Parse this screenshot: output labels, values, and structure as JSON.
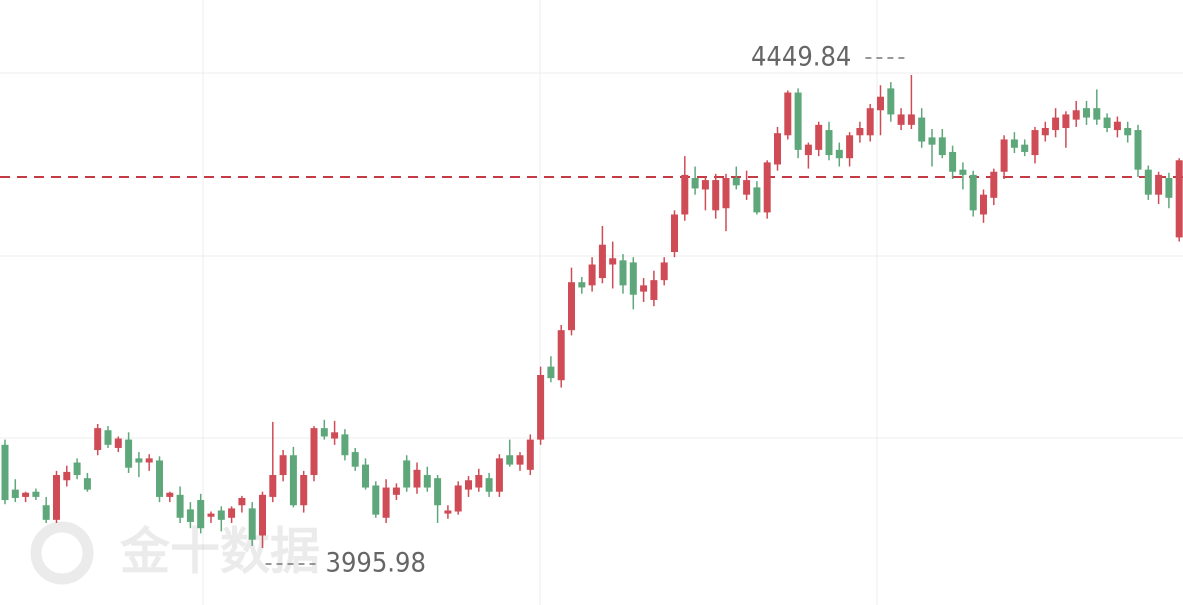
{
  "chart_data": {
    "type": "candlestick",
    "watermark": "金十数据",
    "max_label": 4449.84,
    "min_label": 3995.98,
    "price_line": 4352,
    "up_color": "#cf4b55",
    "down_color": "#5ea77a",
    "line_color": "#c23b45",
    "ylim": [
      3941.3,
      4521.8
    ],
    "candles": [
      [
        4095,
        4100,
        4038,
        4042
      ],
      [
        4052,
        4062,
        4040,
        4044
      ],
      [
        4045,
        4050,
        4040,
        4049
      ],
      [
        4050,
        4053,
        4042,
        4045
      ],
      [
        4037,
        4045,
        4020,
        4023
      ],
      [
        4023,
        4070,
        4020,
        4066
      ],
      [
        4061,
        4075,
        4055,
        4069
      ],
      [
        4078,
        4082,
        4062,
        4066
      ],
      [
        4063,
        4068,
        4050,
        4052
      ],
      [
        4090,
        4115,
        4085,
        4111
      ],
      [
        4109,
        4113,
        4092,
        4095
      ],
      [
        4092,
        4103,
        4088,
        4101
      ],
      [
        4100,
        4107,
        4068,
        4073
      ],
      [
        4082,
        4088,
        4064,
        4078
      ],
      [
        4078,
        4086,
        4070,
        4082
      ],
      [
        4080,
        4084,
        4040,
        4045
      ],
      [
        4045,
        4050,
        4040,
        4049
      ],
      [
        4047,
        4055,
        4020,
        4025
      ],
      [
        4033,
        4040,
        4015,
        4021
      ],
      [
        4042,
        4048,
        4010,
        4015
      ],
      [
        4026,
        4031,
        4020,
        4029
      ],
      [
        4032,
        4036,
        4012,
        4023
      ],
      [
        4025,
        4036,
        4020,
        4034
      ],
      [
        4037,
        4046,
        4030,
        4044
      ],
      [
        4034,
        4040,
        3998,
        4004
      ],
      [
        4008,
        4050,
        3995.98,
        4047
      ],
      [
        4045,
        4117,
        4040,
        4066
      ],
      [
        4066,
        4090,
        4060,
        4085
      ],
      [
        4085,
        4093,
        4035,
        4037
      ],
      [
        4037,
        4070,
        4030,
        4066
      ],
      [
        4066,
        4113,
        4060,
        4111
      ],
      [
        4111,
        4119,
        4100,
        4103
      ],
      [
        4101,
        4118,
        4095,
        4107
      ],
      [
        4105,
        4110,
        4080,
        4085
      ],
      [
        4088,
        4092,
        4070,
        4074
      ],
      [
        4076,
        4082,
        4052,
        4054
      ],
      [
        4056,
        4060,
        4025,
        4028
      ],
      [
        4025,
        4062,
        4020,
        4054
      ],
      [
        4047,
        4058,
        4042,
        4054
      ],
      [
        4080,
        4085,
        4050,
        4054
      ],
      [
        4054,
        4078,
        4048,
        4071
      ],
      [
        4066,
        4074,
        4050,
        4054
      ],
      [
        4063,
        4066,
        4020,
        4037
      ],
      [
        4029,
        4037,
        4024,
        4032
      ],
      [
        4031,
        4060,
        4028,
        4056
      ],
      [
        4052,
        4065,
        4045,
        4061
      ],
      [
        4054,
        4072,
        4050,
        4066
      ],
      [
        4063,
        4068,
        4045,
        4050
      ],
      [
        4050,
        4086,
        4045,
        4082
      ],
      [
        4085,
        4100,
        4074,
        4076
      ],
      [
        4076,
        4088,
        4070,
        4085
      ],
      [
        4071,
        4105,
        4066,
        4100
      ],
      [
        4100,
        4170,
        4095,
        4162
      ],
      [
        4170,
        4180,
        4155,
        4159
      ],
      [
        4157,
        4210,
        4150,
        4205
      ],
      [
        4205,
        4265,
        4200,
        4251
      ],
      [
        4251,
        4256,
        4240,
        4246
      ],
      [
        4248,
        4275,
        4242,
        4268
      ],
      [
        4255,
        4305,
        4250,
        4287
      ],
      [
        4268,
        4290,
        4245,
        4274
      ],
      [
        4272,
        4278,
        4240,
        4248
      ],
      [
        4270,
        4275,
        4225,
        4239
      ],
      [
        4242,
        4255,
        4232,
        4248
      ],
      [
        4234,
        4262,
        4228,
        4253
      ],
      [
        4253,
        4275,
        4248,
        4270
      ],
      [
        4280,
        4320,
        4275,
        4316
      ],
      [
        4316,
        4372,
        4310,
        4354
      ],
      [
        4351,
        4362,
        4335,
        4341
      ],
      [
        4340,
        4352,
        4320,
        4349
      ],
      [
        4320,
        4355,
        4312,
        4349
      ],
      [
        4322,
        4355,
        4300,
        4351
      ],
      [
        4351,
        4362,
        4340,
        4344
      ],
      [
        4335,
        4358,
        4330,
        4349
      ],
      [
        4342,
        4348,
        4316,
        4318
      ],
      [
        4318,
        4368,
        4312,
        4366
      ],
      [
        4364,
        4400,
        4358,
        4394
      ],
      [
        4392,
        4435,
        4388,
        4433
      ],
      [
        4433,
        4437,
        4370,
        4378
      ],
      [
        4373,
        4385,
        4360,
        4383
      ],
      [
        4378,
        4405,
        4372,
        4402
      ],
      [
        4397,
        4405,
        4368,
        4373
      ],
      [
        4378,
        4385,
        4362,
        4370
      ],
      [
        4370,
        4395,
        4362,
        4392
      ],
      [
        4392,
        4405,
        4385,
        4399
      ],
      [
        4392,
        4422,
        4386,
        4418
      ],
      [
        4416,
        4440,
        4392,
        4429
      ],
      [
        4437,
        4443,
        4405,
        4412
      ],
      [
        4402,
        4418,
        4397,
        4412
      ],
      [
        4402,
        4449.84,
        4398,
        4412
      ],
      [
        4409,
        4418,
        4380,
        4386
      ],
      [
        4390,
        4398,
        4362,
        4383
      ],
      [
        4390,
        4398,
        4370,
        4373
      ],
      [
        4376,
        4382,
        4350,
        4357
      ],
      [
        4359,
        4366,
        4340,
        4354
      ],
      [
        4354,
        4358,
        4314,
        4320
      ],
      [
        4316,
        4340,
        4308,
        4335
      ],
      [
        4332,
        4360,
        4325,
        4357
      ],
      [
        4357,
        4392,
        4350,
        4388
      ],
      [
        4388,
        4395,
        4375,
        4380
      ],
      [
        4383,
        4388,
        4372,
        4376
      ],
      [
        4373,
        4400,
        4365,
        4397
      ],
      [
        4392,
        4405,
        4386,
        4399
      ],
      [
        4397,
        4418,
        4390,
        4409
      ],
      [
        4399,
        4415,
        4380,
        4412
      ],
      [
        4407,
        4425,
        4400,
        4416
      ],
      [
        4418,
        4425,
        4402,
        4409
      ],
      [
        4418,
        4436,
        4402,
        4407
      ],
      [
        4409,
        4413,
        4395,
        4399
      ],
      [
        4397,
        4410,
        4390,
        4405
      ],
      [
        4399,
        4405,
        4385,
        4392
      ],
      [
        4397,
        4402,
        4352,
        4359
      ],
      [
        4359,
        4363,
        4330,
        4335
      ],
      [
        4335,
        4357,
        4326,
        4354
      ],
      [
        4351,
        4356,
        4322,
        4332
      ],
      [
        4294,
        4370,
        4290,
        4368
      ]
    ]
  }
}
